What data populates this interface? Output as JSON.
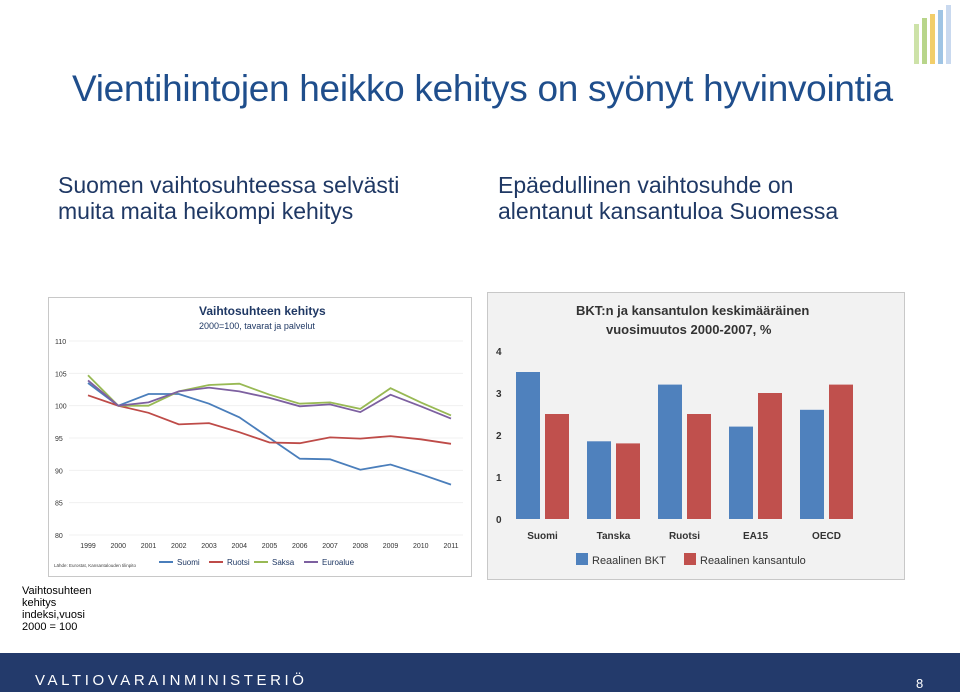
{
  "slide": {
    "title": "Vientihintojen heikko kehitys on syönyt hyvinvointia",
    "left_heading": [
      "Suomen vaihtosuhteessa selvästi",
      "muita maita heikompi kehitys"
    ],
    "right_heading": [
      "Epäedullinen vaihtosuhde on",
      "alentanut kansantuloa Suomessa"
    ],
    "note": [
      "Vaihtosuhteen",
      "kehitys",
      "indeksi,vuosi",
      "2000 = 100"
    ],
    "footer_logo": "VALTIOVARAINMINISTERIÖ",
    "page_number": "8",
    "colors": {
      "title": "#1f4e8c",
      "text": "#1f3864",
      "footer": "#233a6b"
    }
  },
  "chart_data": [
    {
      "type": "line",
      "title": "Vaihtosuhteen kehitys",
      "subtitle": "2000=100, tavarat ja palvelut",
      "source": "Lähde: Eurostat, Kansantalouden tilinpito",
      "x": [
        "1999",
        "2000",
        "2001",
        "2002",
        "2003",
        "2004",
        "2005",
        "2006",
        "2007",
        "2008",
        "2009",
        "2010",
        "2011"
      ],
      "yticks": [
        "110",
        "105",
        "100",
        "95",
        "90",
        "85",
        "80"
      ],
      "ylim": [
        80,
        110
      ],
      "legend_position": "bottom",
      "series": [
        {
          "name": "Suomi",
          "color": "#4a7ebb",
          "values": [
            103.5,
            100,
            101.8,
            101.8,
            100.3,
            98.2,
            95.0,
            91.8,
            91.7,
            90.1,
            90.9,
            89.4,
            87.8
          ]
        },
        {
          "name": "Ruotsi",
          "color": "#be4b48",
          "values": [
            101.6,
            100,
            98.9,
            97.1,
            97.3,
            95.9,
            94.3,
            94.2,
            95.1,
            94.9,
            95.3,
            94.8,
            94.1
          ]
        },
        {
          "name": "Saksa",
          "color": "#98b954",
          "values": [
            104.7,
            100,
            100.0,
            102.2,
            103.2,
            103.4,
            101.7,
            100.3,
            100.5,
            99.5,
            102.7,
            100.5,
            98.5
          ]
        },
        {
          "name": "Euroalue",
          "color": "#7d60a0",
          "values": [
            103.9,
            100,
            100.5,
            102.2,
            102.8,
            102.2,
            101.2,
            99.9,
            100.2,
            99.0,
            101.7,
            99.9,
            98.0
          ]
        }
      ]
    },
    {
      "type": "bar",
      "title": "BKT:n ja kansantulon keskimääräinen vuosimuutos 2000-2007, %",
      "categories": [
        "Suomi",
        "Tanska",
        "Ruotsi",
        "EA15",
        "OECD"
      ],
      "yticks": [
        "4",
        "3",
        "2",
        "1",
        "0"
      ],
      "ylim": [
        0,
        4
      ],
      "legend_position": "bottom",
      "series": [
        {
          "name": "Reaalinen BKT",
          "color": "#4f81bd",
          "values": [
            3.5,
            1.85,
            3.2,
            2.2,
            2.6
          ]
        },
        {
          "name": "Reaalinen kansantulo",
          "color": "#c0504d",
          "values": [
            2.5,
            1.8,
            2.5,
            3.0,
            3.2
          ]
        }
      ]
    }
  ]
}
